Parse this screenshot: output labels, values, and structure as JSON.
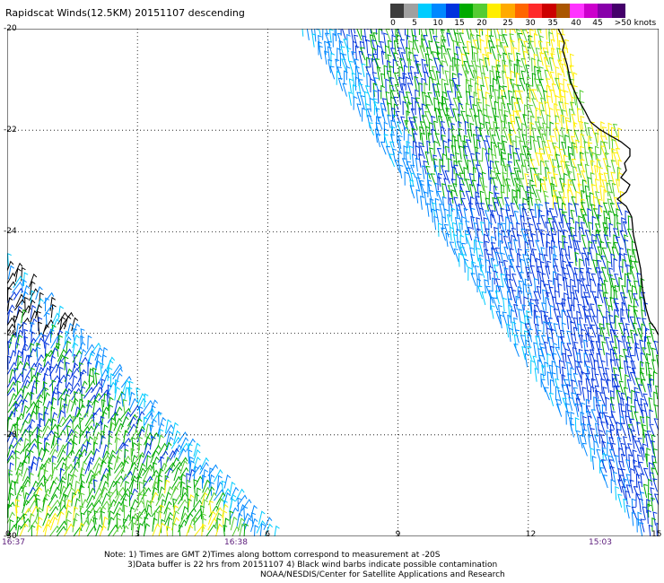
{
  "title": "Rapidscat Winds(12.5KM) 20151107 descending",
  "colorbar": {
    "colors": [
      "#3c3c3c",
      "#a0a0a0",
      "#00ccff",
      "#0088ff",
      "#0033dd",
      "#00aa00",
      "#55cc33",
      "#ffee00",
      "#ffaa00",
      "#ff6600",
      "#ff2a2a",
      "#cc0000",
      "#aa5500",
      "#ff33ff",
      "#cc00cc",
      "#8800aa",
      "#44006a"
    ],
    "labels": [
      "0",
      "5",
      "10",
      "15",
      "20",
      "25",
      "30",
      "35",
      "40",
      "45",
      ">50 knots"
    ]
  },
  "map": {
    "y_labels": [
      "-20",
      "-22",
      "-24",
      "-26",
      "-28",
      "-30"
    ],
    "x_labels": [
      "0",
      "3",
      "6",
      "9",
      "12",
      "15"
    ],
    "time_labels": [
      "16:37",
      "16:38",
      "15:03"
    ],
    "lat_range": [
      -30,
      -20
    ],
    "lon_range": [
      0,
      15
    ]
  },
  "notes": [
    "Note: 1) Times are GMT 2)Times along bottom correspond to measurement at -20S",
    "3)Data buffer is 22 hrs from 20151107 4) Black wind barbs indicate possible contamination",
    "NOAA/NESDIS/Center for Satellite Applications and Research"
  ]
}
